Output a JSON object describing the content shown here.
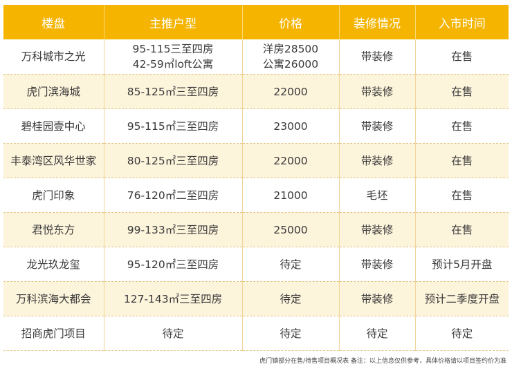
{
  "table": {
    "headers": [
      "楼盘",
      "主推户型",
      "价格",
      "装修情况",
      "入市时间"
    ],
    "rows": [
      {
        "name": "万科城市之光",
        "layout": [
          "95-115三至四房",
          "42-59㎡loft公寓"
        ],
        "price": [
          "洋房28500",
          "公寓26000"
        ],
        "decor": "带装修",
        "launch": "在售"
      },
      {
        "name": "虎门滨海城",
        "layout": [
          "85-125㎡三至四房"
        ],
        "price": [
          "22000"
        ],
        "decor": "带装修",
        "launch": "在售"
      },
      {
        "name": "碧桂园壹中心",
        "layout": [
          "95-115㎡三至四房"
        ],
        "price": [
          "23000"
        ],
        "decor": "带装修",
        "launch": "在售"
      },
      {
        "name": "丰泰湾区风华世家",
        "layout": [
          "80-125㎡三至四房"
        ],
        "price": [
          "22000"
        ],
        "decor": "带装修",
        "launch": "在售"
      },
      {
        "name": "虎门印象",
        "layout": [
          "76-120㎡二至四房"
        ],
        "price": [
          "21000"
        ],
        "decor": "毛坯",
        "launch": "在售"
      },
      {
        "name": "君悦东方",
        "layout": [
          "99-133㎡三至四房"
        ],
        "price": [
          "25000"
        ],
        "decor": "带装修",
        "launch": "在售"
      },
      {
        "name": "龙光玖龙玺",
        "layout": [
          "95-120㎡三至四房"
        ],
        "price": [
          "待定"
        ],
        "decor": "带装修",
        "launch": "预计5月开盘"
      },
      {
        "name": "万科滨海大都会",
        "layout": [
          "127-143㎡三至四房"
        ],
        "price": [
          "待定"
        ],
        "decor": "带装修",
        "launch": "预计二季度开盘"
      },
      {
        "name": "招商虎门项目",
        "layout": [
          "待定"
        ],
        "price": [
          "待定"
        ],
        "decor": "待定",
        "launch": "待定"
      }
    ]
  },
  "footnote": "虎门镇部分在售/待售项目概况表 备注：以上信息仅供参考，具体价格请以项目签约价为准",
  "colors": {
    "header_bg": "#f4b400",
    "stripe_bg": "#fdf4dc"
  }
}
